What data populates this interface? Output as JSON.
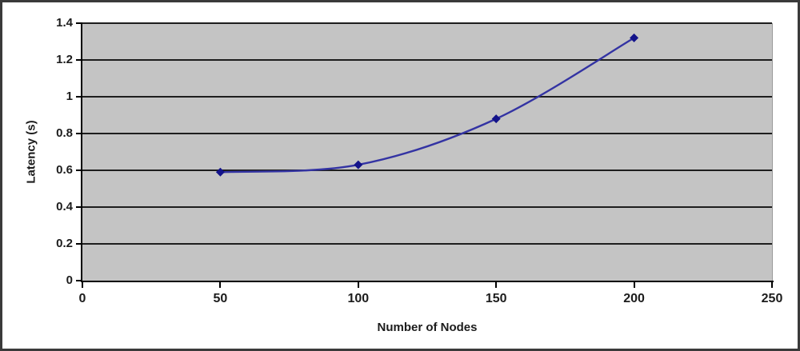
{
  "chart_data": {
    "type": "line",
    "title": "",
    "xlabel": "Number of Nodes",
    "ylabel": "Latency (s)",
    "x": [
      50,
      100,
      150,
      200
    ],
    "y": [
      0.59,
      0.63,
      0.88,
      1.32
    ],
    "series": [
      {
        "name": "Latency",
        "x": [
          50,
          100,
          150,
          200
        ],
        "values": [
          0.59,
          0.63,
          0.88,
          1.32
        ]
      }
    ],
    "xlim": [
      0,
      250
    ],
    "ylim": [
      0,
      1.4
    ],
    "x_tick_labels": [
      "0",
      "50",
      "100",
      "150",
      "200",
      "250"
    ],
    "y_tick_labels": [
      "0",
      "0.2",
      "0.4",
      "0.6",
      "0.8",
      "1",
      "1.2",
      "1.4"
    ],
    "grid": "horizontal",
    "legend": false,
    "smooth_line": true,
    "marker_shape": "diamond",
    "colors": {
      "plot_background": "#c4c4c4",
      "gridline": "#1e1e1e",
      "axis": "#000000",
      "line": "#3333a3",
      "marker": "#13138a",
      "tick_text": "#1c1c1c",
      "frame_border": "#3a3a3a",
      "chart_background": "#ffffff"
    }
  }
}
